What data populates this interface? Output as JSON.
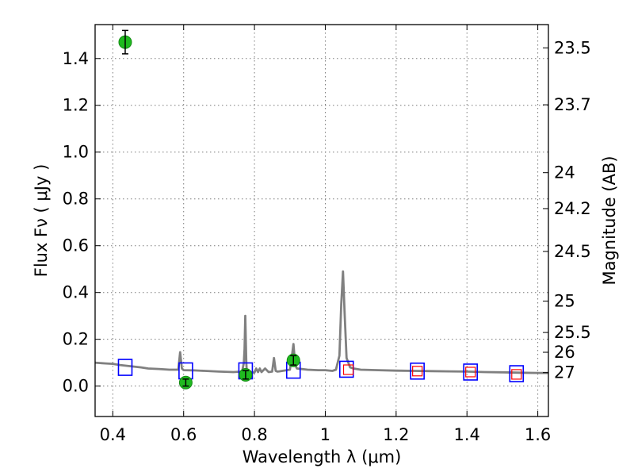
{
  "chart_data": {
    "type": "scatter",
    "title": "",
    "xlabel": "Wavelength  λ (μm)",
    "ylabel": "Flux  Fν  ( μJy )",
    "ylabel_right": "Magnitude (AB)",
    "xlim": [
      0.35,
      1.63
    ],
    "ylim": [
      -0.13,
      1.545
    ],
    "xticks": [
      0.4,
      0.6,
      0.8,
      1.0,
      1.2,
      1.4,
      1.6
    ],
    "xtick_labels": [
      "0.4",
      "0.6",
      "0.8",
      "1",
      "1.2",
      "1.4",
      "1.6"
    ],
    "yticks": [
      0.0,
      0.2,
      0.4,
      0.6,
      0.8,
      1.0,
      1.2,
      1.4
    ],
    "ytick_labels": [
      "0.0",
      "0.2",
      "0.4",
      "0.6",
      "0.8",
      "1.0",
      "1.2",
      "1.4"
    ],
    "mag_ticks": [
      23.5,
      23.7,
      24,
      24.2,
      24.5,
      25,
      25.5,
      26,
      27
    ],
    "mag_tick_labels": [
      "23.5",
      "23.7",
      "24",
      "24.2",
      "24.5",
      "25",
      "25.5",
      "26",
      "27"
    ],
    "grid": true,
    "series": [
      {
        "kind": "model_spectrum",
        "color": "#808080",
        "x": [
          0.35,
          0.38,
          0.4,
          0.42,
          0.45,
          0.48,
          0.5,
          0.53,
          0.56,
          0.585,
          0.59,
          0.595,
          0.6,
          0.63,
          0.66,
          0.7,
          0.74,
          0.765,
          0.77,
          0.772,
          0.774,
          0.776,
          0.777,
          0.778,
          0.78,
          0.785,
          0.8,
          0.805,
          0.81,
          0.815,
          0.82,
          0.83,
          0.84,
          0.85,
          0.855,
          0.86,
          0.865,
          0.87,
          0.9,
          0.905,
          0.91,
          0.915,
          0.92,
          0.95,
          0.98,
          1.0,
          1.02,
          1.03,
          1.04,
          1.045,
          1.05,
          1.055,
          1.06,
          1.07,
          1.08,
          1.1,
          1.15,
          1.2,
          1.25,
          1.3,
          1.35,
          1.4,
          1.45,
          1.5,
          1.55,
          1.6,
          1.63
        ],
        "y": [
          0.1,
          0.097,
          0.095,
          0.09,
          0.085,
          0.08,
          0.075,
          0.073,
          0.07,
          0.07,
          0.145,
          0.075,
          0.068,
          0.067,
          0.065,
          0.062,
          0.06,
          0.062,
          0.1,
          0.16,
          0.3,
          0.16,
          0.1,
          0.068,
          0.062,
          0.06,
          0.058,
          0.075,
          0.06,
          0.075,
          0.06,
          0.075,
          0.06,
          0.062,
          0.12,
          0.065,
          0.062,
          0.063,
          0.07,
          0.12,
          0.18,
          0.09,
          0.075,
          0.07,
          0.068,
          0.068,
          0.065,
          0.07,
          0.13,
          0.35,
          0.49,
          0.3,
          0.12,
          0.08,
          0.075,
          0.07,
          0.068,
          0.066,
          0.065,
          0.064,
          0.063,
          0.062,
          0.06,
          0.059,
          0.057,
          0.056,
          0.056
        ]
      },
      {
        "kind": "photometry",
        "marker": "filled-circle",
        "color": "#1fba1f",
        "x": [
          0.435,
          0.606,
          0.775,
          0.91
        ],
        "y": [
          1.47,
          0.015,
          0.048,
          0.11
        ],
        "yerr": [
          0.05,
          0.015,
          0.018,
          0.02
        ]
      },
      {
        "kind": "model_synthetic_photometry",
        "marker": "open-square",
        "color": "#0000ff",
        "x": [
          0.435,
          0.606,
          0.775,
          0.91,
          1.06,
          1.26,
          1.41,
          1.54
        ],
        "y": [
          0.08,
          0.065,
          0.065,
          0.068,
          0.072,
          0.064,
          0.06,
          0.053
        ]
      },
      {
        "kind": "upper_points",
        "marker": "small-open-square",
        "color": "#ff0000",
        "x": [
          1.065,
          1.26,
          1.41,
          1.54
        ],
        "y": [
          0.07,
          0.064,
          0.06,
          0.05
        ]
      }
    ]
  }
}
